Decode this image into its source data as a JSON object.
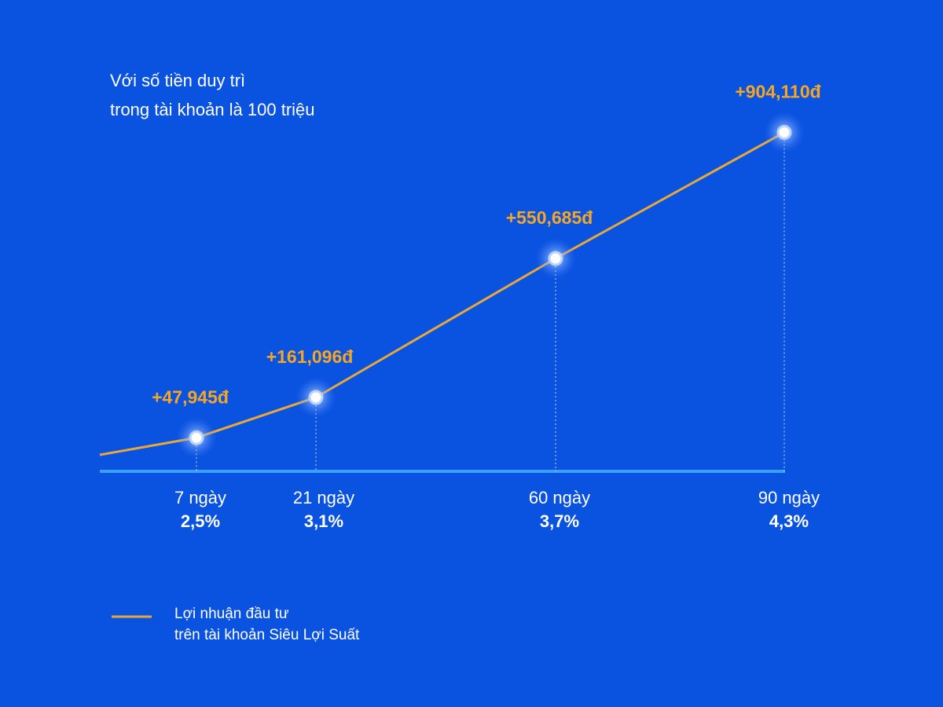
{
  "chart_data": {
    "type": "line",
    "title": [
      "Với số tiền duy trì",
      "trong tài khoản là 100 triệu"
    ],
    "categories": [
      "7 ngày",
      "21 ngày",
      "60 ngày",
      "90 ngày"
    ],
    "rate_labels": [
      "2,5%",
      "3,1%",
      "3,7%",
      "4,3%"
    ],
    "series": [
      {
        "name": [
          "Lợi nhuận đầu tư",
          "trên tài khoản Siêu Lợi Suất"
        ],
        "color": "#e8a838",
        "values": [
          47945,
          161096,
          550685,
          904110
        ],
        "value_labels": [
          "+47,945đ",
          "+161,096đ",
          "+550,685đ",
          "+904,110đ"
        ]
      }
    ],
    "ylim": [
      0,
      1000000
    ],
    "label_color": "#f5a623"
  }
}
